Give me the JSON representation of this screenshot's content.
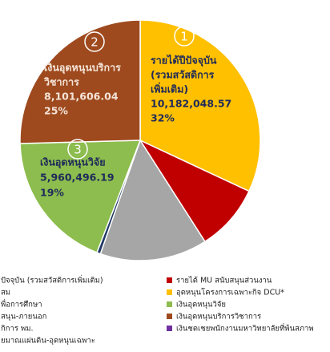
{
  "chart_data": {
    "type": "pie",
    "values": [
      10182048.57,
      2860000,
      4600000,
      160000,
      5960496.19,
      8101606.04
    ],
    "value_labels": [
      "10,182,048.57",
      null,
      null,
      null,
      "5,960,496.19",
      "8,101,606.04"
    ],
    "percents": [
      32,
      null,
      null,
      null,
      19,
      25
    ],
    "percent_labels": [
      "32%",
      null,
      null,
      null,
      "19%",
      "25%"
    ],
    "colors": [
      "#ffc000",
      "#c00000",
      "#a6a6a6",
      "#1f3864",
      "#8cbd4e",
      "#9e4a1e"
    ],
    "markers": [
      "1",
      null,
      null,
      null,
      "3",
      "2"
    ],
    "label_lines": [
      [
        "รายได้ปีปัจจุบัน",
        "(รวมสวัสดิการ",
        "เพิ่มเติม)"
      ],
      null,
      null,
      null,
      [
        "เงินอุดหนุนวิจัย"
      ],
      [
        "เงินอุดหนุนบริการ",
        "วิชาการ"
      ]
    ],
    "legend": {
      "left": [
        "ปัจจุบัน (รวมสวัสดิการเพิ่มเติม)",
        "สม",
        "พื่อการศึกษา",
        "สนุน-ภายนอก",
        "กิการ พม.",
        "ยมาณแผ่นดิน-อุดหนุนเฉพาะ"
      ],
      "right": [
        {
          "label": "รายได้ MU สนับสนุนส่วนงาน",
          "color": "#c00000"
        },
        {
          "label": "อุดหนุนโครงการเฉพาะกิจ DCU*",
          "color": "#ffc000"
        },
        {
          "label": "เงินอุดหนุนวิจัย",
          "color": "#8cbd4e"
        },
        {
          "label": "เงินอุดหนุนบริการวิชาการ",
          "color": "#9e4a1e"
        },
        {
          "label": "เงินชดเชยพนักงานมหาวิทยาลัยที่พ้นสภาพ",
          "color": "#7030a0"
        }
      ]
    }
  }
}
